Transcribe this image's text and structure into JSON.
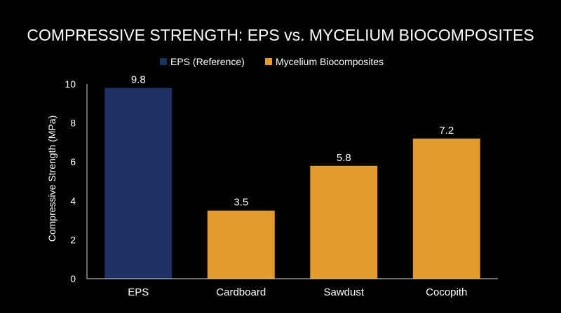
{
  "chart_data": {
    "type": "bar",
    "title": "COMPRESSIVE STRENGTH: EPS vs. MYCELIUM BIOCOMPOSITES",
    "xlabel": "",
    "ylabel": "Compressive Strength (MPa)",
    "categories": [
      "EPS",
      "Cardboard",
      "Sawdust",
      "Cocopith"
    ],
    "values": [
      9.8,
      3.5,
      5.8,
      7.2
    ],
    "data_labels": [
      "9.8",
      "3.5",
      "5.8",
      "7.2"
    ],
    "bar_series": [
      0,
      1,
      1,
      1
    ],
    "series": [
      {
        "name": "EPS (Reference)",
        "color": "#1e3266"
      },
      {
        "name": "Mycelium Biocomposites",
        "color": "#e39b2b"
      }
    ],
    "yticks": [
      0,
      2,
      4,
      6,
      8,
      10
    ],
    "ytick_labels": [
      "0",
      "2",
      "4",
      "6",
      "8",
      "10"
    ],
    "ylim": [
      0,
      10
    ],
    "grid": false,
    "legend_position": "top-center"
  }
}
